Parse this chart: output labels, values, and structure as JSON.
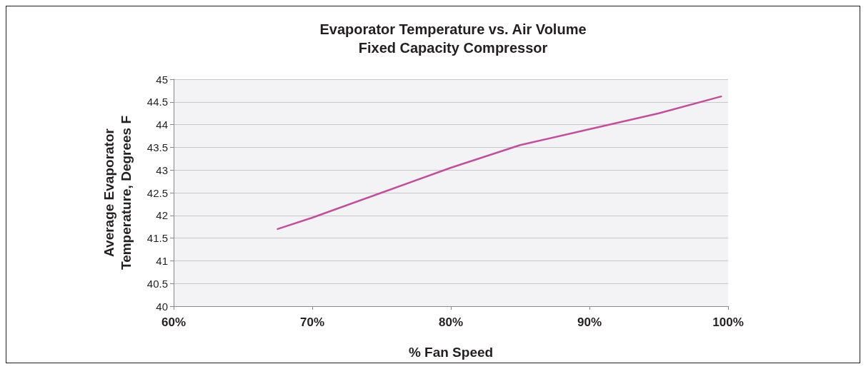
{
  "chart_data": {
    "type": "line",
    "title": "Evaporator Temperature vs. Air Volume\nFixed Capacity Compressor",
    "xlabel": "% Fan Speed",
    "ylabel": "Average Evaporator\nTemperature, Degrees F",
    "x": [
      67.5,
      70,
      75,
      80,
      85,
      90,
      95,
      99.5
    ],
    "series": [
      {
        "color": "#c0509b",
        "values": [
          41.7,
          41.95,
          42.5,
          43.05,
          43.55,
          43.9,
          44.25,
          44.62
        ]
      }
    ],
    "xlim": [
      60,
      100
    ],
    "xticks": [
      {
        "value": 60,
        "label": "60%"
      },
      {
        "value": 70,
        "label": "70%"
      },
      {
        "value": 80,
        "label": "80%"
      },
      {
        "value": 90,
        "label": "90%"
      },
      {
        "value": 100,
        "label": "100%"
      }
    ],
    "ylim": [
      40,
      45
    ],
    "yticks": [
      40,
      40.5,
      41,
      41.5,
      42,
      42.5,
      43,
      43.5,
      44,
      44.5,
      45
    ],
    "grid": "y",
    "marker": "none",
    "line_style": "solid"
  }
}
